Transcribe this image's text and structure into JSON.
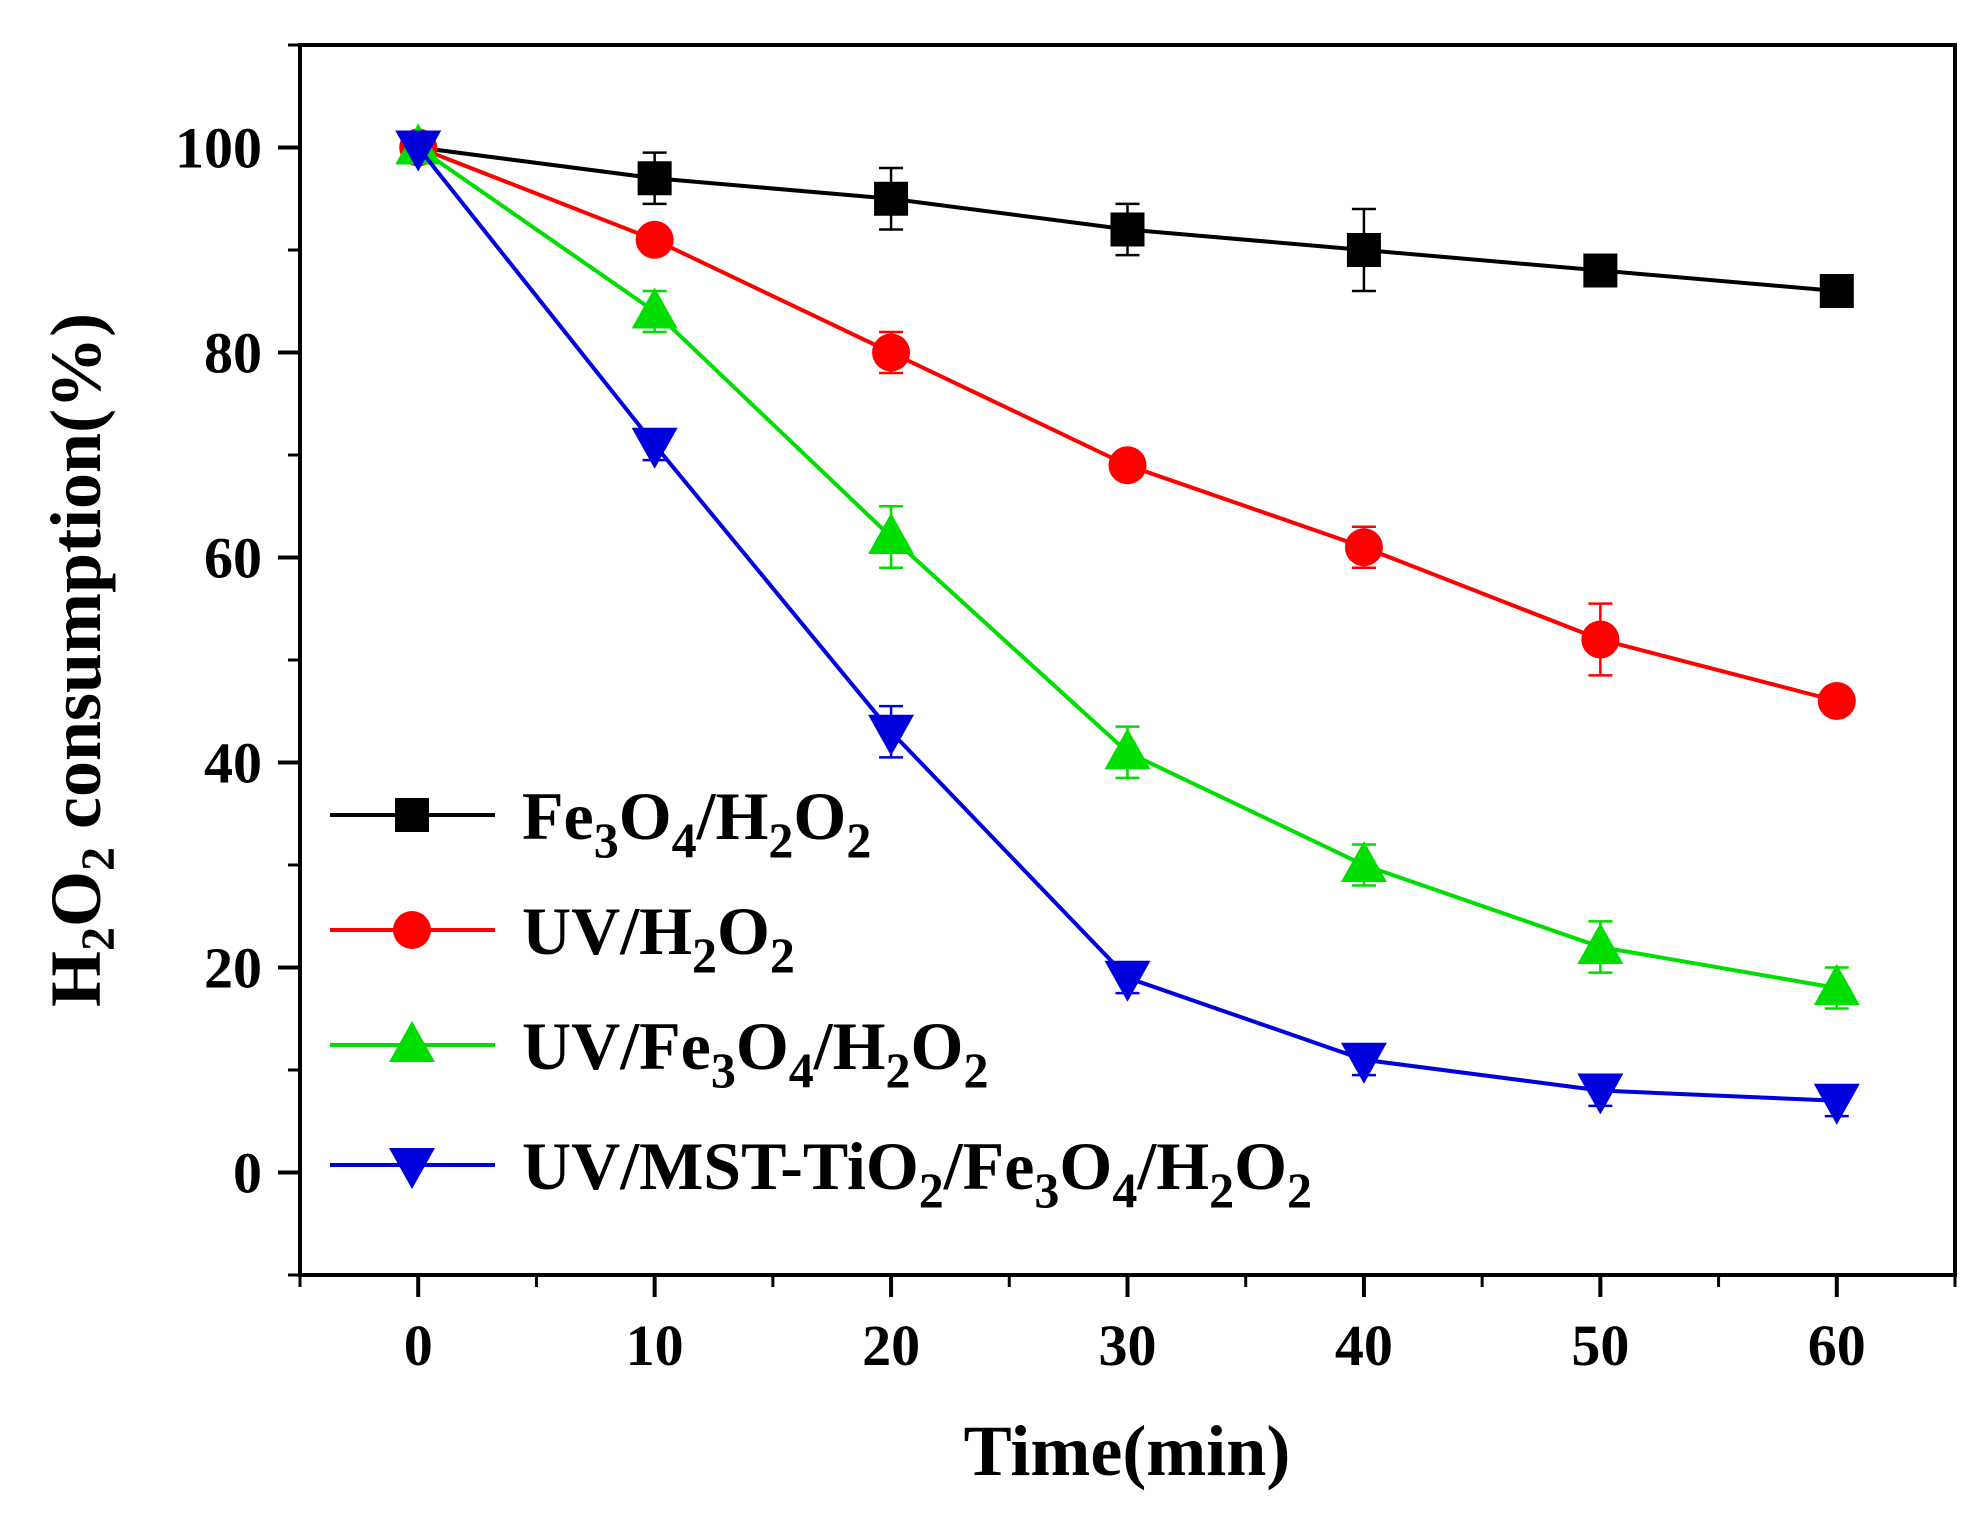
{
  "chart_data": {
    "type": "line",
    "title": "",
    "xlabel": "Time(min)",
    "ylabel": {
      "main": "H",
      "sub1": "2",
      "mid": "O",
      "sub2": "2",
      "tail": " consumption(%)"
    },
    "xlim": [
      -5,
      65
    ],
    "ylim": [
      -10,
      110
    ],
    "x_ticks": [
      0,
      10,
      20,
      30,
      40,
      50,
      60
    ],
    "x_tick_labels": [
      "0",
      "10",
      "20",
      "30",
      "40",
      "50",
      "60"
    ],
    "y_ticks": [
      0,
      20,
      40,
      60,
      80,
      100
    ],
    "y_tick_labels": [
      "0",
      "20",
      "40",
      "60",
      "80",
      "100"
    ],
    "x_minor_ticks": [
      -5,
      5,
      15,
      25,
      35,
      45,
      55,
      65
    ],
    "y_minor_ticks": [
      -10,
      10,
      30,
      50,
      70,
      90,
      110
    ],
    "legend_position": "lower-left",
    "x": [
      0,
      10,
      20,
      30,
      40,
      50,
      60
    ],
    "series": [
      {
        "name": "Fe3O4/H2O2",
        "label_parts": [
          [
            "Fe",
            ""
          ],
          [
            "3",
            "sub"
          ],
          [
            "O",
            ""
          ],
          [
            "4",
            "sub"
          ],
          [
            "/H",
            ""
          ],
          [
            "2",
            "sub"
          ],
          [
            "O",
            ""
          ],
          [
            "2",
            "sub"
          ]
        ],
        "color": "#000000",
        "marker": "square",
        "values": [
          100,
          97,
          95,
          92,
          90,
          88,
          86
        ],
        "errors": [
          0,
          2.5,
          3,
          2.5,
          4,
          0,
          0
        ]
      },
      {
        "name": "UV/H2O2",
        "label_parts": [
          [
            "UV/H",
            ""
          ],
          [
            "2",
            "sub"
          ],
          [
            "O",
            ""
          ],
          [
            "2",
            "sub"
          ]
        ],
        "color": "#ff0000",
        "marker": "circle",
        "values": [
          100,
          91,
          80,
          69,
          61,
          52,
          46
        ],
        "errors": [
          0,
          0,
          2,
          0,
          2,
          3.5,
          0
        ]
      },
      {
        "name": "UV/Fe3O4/H2O2",
        "label_parts": [
          [
            "UV/Fe",
            ""
          ],
          [
            "3",
            "sub"
          ],
          [
            "O",
            ""
          ],
          [
            "4",
            "sub"
          ],
          [
            "/H",
            ""
          ],
          [
            "2",
            "sub"
          ],
          [
            "O",
            ""
          ],
          [
            "2",
            "sub"
          ]
        ],
        "color": "#00dd00",
        "marker": "triangle-up",
        "values": [
          100,
          84,
          62,
          41,
          30,
          22,
          18
        ],
        "errors": [
          0,
          2,
          3,
          2.5,
          2,
          2.5,
          2
        ]
      },
      {
        "name": "UV/MST-TiO2/Fe3O4/H2O2",
        "label_parts": [
          [
            "UV/MST-TiO",
            ""
          ],
          [
            "2",
            "sub"
          ],
          [
            "/Fe",
            ""
          ],
          [
            "3",
            "sub"
          ],
          [
            "O",
            ""
          ],
          [
            "4",
            "sub"
          ],
          [
            "/H",
            ""
          ],
          [
            "2",
            "sub"
          ],
          [
            "O",
            ""
          ],
          [
            "2",
            "sub"
          ]
        ],
        "color": "#0000dd",
        "marker": "triangle-down",
        "values": [
          100,
          71,
          43,
          19,
          11,
          8,
          7
        ],
        "errors": [
          0,
          1.5,
          2.5,
          1.5,
          1.5,
          1.5,
          1.5
        ]
      }
    ]
  }
}
